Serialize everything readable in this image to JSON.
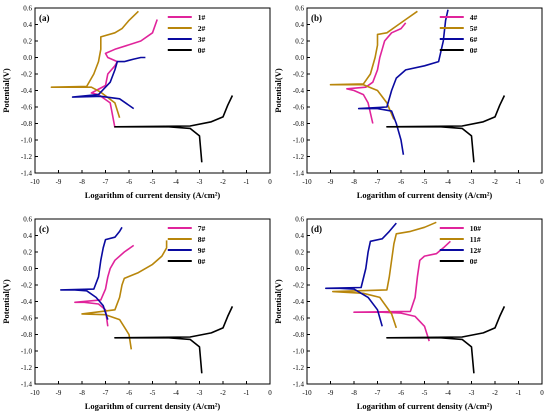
{
  "chart_data": [
    {
      "type": "line",
      "panel_label": "(a)",
      "xlabel": "Logarithm of current density (A/cm²)",
      "ylabel": "Potential(V)",
      "xlim": [
        -10,
        0
      ],
      "ylim": [
        -1.4,
        0.6
      ],
      "xticks": [
        "-10",
        "-9",
        "-8",
        "-7",
        "-6",
        "-5",
        "-4",
        "-3",
        "-2",
        "-1",
        "0"
      ],
      "yticks": [
        "-1.4",
        "-1.2",
        "-1.0",
        "-0.8",
        "-0.6",
        "-0.4",
        "-0.2",
        "0.0",
        "0.2",
        "0.4",
        "0.6"
      ],
      "legend_position": "top-right",
      "series": [
        {
          "name": "1#",
          "color": "#e0249b",
          "points": [
            [
              -6.6,
              -0.85
            ],
            [
              -6.8,
              -0.55
            ],
            [
              -7.3,
              -0.45
            ],
            [
              -7.6,
              -0.43
            ],
            [
              -7.0,
              -0.34
            ],
            [
              -6.9,
              -0.2
            ],
            [
              -6.6,
              -0.1
            ],
            [
              -6.5,
              -0.05
            ],
            [
              -6.9,
              0.0
            ],
            [
              -7.0,
              0.05
            ],
            [
              -6.6,
              0.1
            ],
            [
              -5.5,
              0.2
            ],
            [
              -5.0,
              0.3
            ],
            [
              -4.8,
              0.46
            ]
          ]
        },
        {
          "name": "2#",
          "color": "#b8860b",
          "points": [
            [
              -6.4,
              -0.73
            ],
            [
              -6.6,
              -0.55
            ],
            [
              -7.2,
              -0.42
            ],
            [
              -7.6,
              -0.36
            ],
            [
              -8.2,
              -0.36
            ],
            [
              -9.3,
              -0.36
            ],
            [
              -7.8,
              -0.35
            ],
            [
              -7.5,
              -0.2
            ],
            [
              -7.3,
              -0.05
            ],
            [
              -7.2,
              0.1
            ],
            [
              -7.2,
              0.25
            ],
            [
              -6.6,
              0.3
            ],
            [
              -6.3,
              0.35
            ],
            [
              -6.0,
              0.45
            ],
            [
              -5.6,
              0.56
            ]
          ]
        },
        {
          "name": "3#",
          "color": "#0a0aa0",
          "points": [
            [
              -5.8,
              -0.62
            ],
            [
              -6.4,
              -0.5
            ],
            [
              -7.2,
              -0.47
            ],
            [
              -8.4,
              -0.48
            ],
            [
              -7.3,
              -0.45
            ],
            [
              -6.8,
              -0.3
            ],
            [
              -6.6,
              -0.15
            ],
            [
              -6.5,
              -0.05
            ],
            [
              -6.2,
              -0.05
            ],
            [
              -5.8,
              -0.02
            ],
            [
              -5.5,
              0.0
            ],
            [
              -5.3,
              0.0
            ]
          ]
        },
        {
          "name": "0#",
          "color": "#000000",
          "points": [
            [
              -2.9,
              -1.27
            ],
            [
              -3.0,
              -0.95
            ],
            [
              -3.4,
              -0.86
            ],
            [
              -4.3,
              -0.84
            ],
            [
              -5.2,
              -0.84
            ],
            [
              -6.6,
              -0.84
            ],
            [
              -3.4,
              -0.83
            ],
            [
              -2.5,
              -0.78
            ],
            [
              -2.0,
              -0.72
            ],
            [
              -1.8,
              -0.58
            ],
            [
              -1.6,
              -0.46
            ]
          ]
        }
      ]
    },
    {
      "type": "line",
      "panel_label": "(b)",
      "xlabel": "Logarithm of current density (A/cm²)",
      "ylabel": "Potential(V)",
      "xlim": [
        -10,
        0
      ],
      "ylim": [
        -1.4,
        0.6
      ],
      "xticks": [
        "-10",
        "-9",
        "-8",
        "-7",
        "-6",
        "-5",
        "-4",
        "-3",
        "-2",
        "-1",
        "0"
      ],
      "yticks": [
        "-1.4",
        "-1.2",
        "-1.0",
        "-0.8",
        "-0.6",
        "-0.4",
        "-0.2",
        "0.0",
        "0.2",
        "0.4",
        "0.6"
      ],
      "legend_position": "top-right",
      "series": [
        {
          "name": "4#",
          "color": "#e0249b",
          "points": [
            [
              -7.2,
              -0.8
            ],
            [
              -7.4,
              -0.55
            ],
            [
              -7.6,
              -0.45
            ],
            [
              -8.0,
              -0.4
            ],
            [
              -8.3,
              -0.38
            ],
            [
              -7.5,
              -0.36
            ],
            [
              -7.2,
              -0.3
            ],
            [
              -7.0,
              -0.15
            ],
            [
              -6.9,
              0.0
            ],
            [
              -6.8,
              0.1
            ],
            [
              -6.7,
              0.2
            ],
            [
              -6.4,
              0.3
            ],
            [
              -6.0,
              0.35
            ],
            [
              -5.8,
              0.42
            ]
          ]
        },
        {
          "name": "5#",
          "color": "#b8860b",
          "points": [
            [
              -6.3,
              -0.75
            ],
            [
              -6.6,
              -0.55
            ],
            [
              -7.0,
              -0.4
            ],
            [
              -7.6,
              -0.33
            ],
            [
              -8.2,
              -0.33
            ],
            [
              -9.0,
              -0.33
            ],
            [
              -7.6,
              -0.32
            ],
            [
              -7.3,
              -0.2
            ],
            [
              -7.1,
              0.0
            ],
            [
              -7.0,
              0.15
            ],
            [
              -7.0,
              0.28
            ],
            [
              -6.6,
              0.3
            ],
            [
              -6.2,
              0.38
            ],
            [
              -5.8,
              0.46
            ],
            [
              -5.3,
              0.56
            ]
          ]
        },
        {
          "name": "6#",
          "color": "#0a0aa0",
          "points": [
            [
              -5.9,
              -1.18
            ],
            [
              -6.0,
              -1.0
            ],
            [
              -6.2,
              -0.8
            ],
            [
              -6.4,
              -0.65
            ],
            [
              -7.0,
              -0.62
            ],
            [
              -7.8,
              -0.62
            ],
            [
              -6.6,
              -0.6
            ],
            [
              -6.4,
              -0.4
            ],
            [
              -6.2,
              -0.25
            ],
            [
              -5.8,
              -0.15
            ],
            [
              -5.0,
              -0.1
            ],
            [
              -4.4,
              -0.05
            ],
            [
              -4.2,
              0.2
            ],
            [
              -4.1,
              0.45
            ],
            [
              -4.0,
              0.58
            ]
          ]
        },
        {
          "name": "0#",
          "color": "#000000",
          "points": [
            [
              -2.9,
              -1.27
            ],
            [
              -3.0,
              -0.95
            ],
            [
              -3.4,
              -0.86
            ],
            [
              -4.3,
              -0.84
            ],
            [
              -5.2,
              -0.84
            ],
            [
              -6.6,
              -0.84
            ],
            [
              -3.4,
              -0.83
            ],
            [
              -2.5,
              -0.78
            ],
            [
              -2.0,
              -0.72
            ],
            [
              -1.8,
              -0.58
            ],
            [
              -1.6,
              -0.46
            ]
          ]
        }
      ]
    },
    {
      "type": "line",
      "panel_label": "(c)",
      "xlabel": "Logarithm of current density (A/cm²)",
      "ylabel": "Potential(V)",
      "xlim": [
        -10,
        0
      ],
      "ylim": [
        -1.4,
        0.6
      ],
      "xticks": [
        "-10",
        "-9",
        "-8",
        "-7",
        "-6",
        "-5",
        "-4",
        "-3",
        "-2",
        "-1",
        "0"
      ],
      "yticks": [
        "-1.4",
        "-1.2",
        "-1.0",
        "-0.8",
        "-0.6",
        "-0.4",
        "-0.2",
        "0.0",
        "0.2",
        "0.4",
        "0.6"
      ],
      "legend_position": "top-right",
      "series": [
        {
          "name": "7#",
          "color": "#e0249b",
          "points": [
            [
              -6.9,
              -0.7
            ],
            [
              -7.0,
              -0.5
            ],
            [
              -7.3,
              -0.43
            ],
            [
              -7.9,
              -0.41
            ],
            [
              -8.3,
              -0.41
            ],
            [
              -7.2,
              -0.38
            ],
            [
              -7.0,
              -0.25
            ],
            [
              -6.9,
              -0.1
            ],
            [
              -6.8,
              0.0
            ],
            [
              -6.6,
              0.1
            ],
            [
              -6.2,
              0.2
            ],
            [
              -5.8,
              0.28
            ]
          ]
        },
        {
          "name": "8#",
          "color": "#b8860b",
          "points": [
            [
              -5.9,
              -0.98
            ],
            [
              -6.0,
              -0.8
            ],
            [
              -6.4,
              -0.62
            ],
            [
              -7.0,
              -0.56
            ],
            [
              -8.0,
              -0.55
            ],
            [
              -6.6,
              -0.5
            ],
            [
              -6.4,
              -0.35
            ],
            [
              -6.3,
              -0.2
            ],
            [
              -6.2,
              -0.12
            ],
            [
              -5.6,
              -0.05
            ],
            [
              -5.0,
              0.05
            ],
            [
              -4.6,
              0.15
            ],
            [
              -4.4,
              0.25
            ],
            [
              -4.4,
              0.34
            ]
          ]
        },
        {
          "name": "9#",
          "color": "#0a0aa0",
          "points": [
            [
              -6.9,
              -0.62
            ],
            [
              -7.1,
              -0.45
            ],
            [
              -7.4,
              -0.35
            ],
            [
              -7.8,
              -0.27
            ],
            [
              -8.3,
              -0.26
            ],
            [
              -8.9,
              -0.26
            ],
            [
              -7.5,
              -0.25
            ],
            [
              -7.3,
              -0.1
            ],
            [
              -7.2,
              0.1
            ],
            [
              -7.1,
              0.25
            ],
            [
              -7.0,
              0.35
            ],
            [
              -6.6,
              0.38
            ],
            [
              -6.4,
              0.45
            ],
            [
              -6.3,
              0.5
            ]
          ]
        },
        {
          "name": "0#",
          "color": "#000000",
          "points": [
            [
              -2.9,
              -1.27
            ],
            [
              -3.0,
              -0.95
            ],
            [
              -3.4,
              -0.86
            ],
            [
              -4.3,
              -0.84
            ],
            [
              -5.2,
              -0.84
            ],
            [
              -6.6,
              -0.84
            ],
            [
              -3.4,
              -0.83
            ],
            [
              -2.5,
              -0.78
            ],
            [
              -2.0,
              -0.72
            ],
            [
              -1.8,
              -0.58
            ],
            [
              -1.6,
              -0.46
            ]
          ]
        }
      ]
    },
    {
      "type": "line",
      "panel_label": "(d)",
      "xlabel": "Logarithm of current density (A/cm²)",
      "ylabel": "Potential(V)",
      "xlim": [
        -10,
        0
      ],
      "ylim": [
        -1.4,
        0.6
      ],
      "xticks": [
        "-10",
        "-9",
        "-8",
        "-7",
        "-6",
        "-5",
        "-4",
        "-3",
        "-2",
        "-1",
        "0"
      ],
      "yticks": [
        "-1.4",
        "-1.2",
        "-1.0",
        "-0.8",
        "-0.6",
        "-0.4",
        "-0.2",
        "0.0",
        "0.2",
        "0.4",
        "0.6"
      ],
      "legend_position": "top-right",
      "series": [
        {
          "name": "10#",
          "color": "#e0249b",
          "points": [
            [
              -4.8,
              -0.88
            ],
            [
              -5.0,
              -0.7
            ],
            [
              -5.4,
              -0.58
            ],
            [
              -6.0,
              -0.54
            ],
            [
              -6.8,
              -0.53
            ],
            [
              -8.0,
              -0.53
            ],
            [
              -5.6,
              -0.52
            ],
            [
              -5.4,
              -0.35
            ],
            [
              -5.3,
              -0.1
            ],
            [
              -5.2,
              0.1
            ],
            [
              -5.0,
              0.15
            ],
            [
              -4.5,
              0.18
            ],
            [
              -4.2,
              0.25
            ],
            [
              -3.9,
              0.33
            ]
          ]
        },
        {
          "name": "11#",
          "color": "#b8860b",
          "points": [
            [
              -6.2,
              -0.72
            ],
            [
              -6.4,
              -0.55
            ],
            [
              -6.9,
              -0.35
            ],
            [
              -7.6,
              -0.3
            ],
            [
              -8.9,
              -0.28
            ],
            [
              -6.6,
              -0.26
            ],
            [
              -6.5,
              -0.1
            ],
            [
              -6.4,
              0.1
            ],
            [
              -6.3,
              0.3
            ],
            [
              -6.2,
              0.42
            ],
            [
              -5.6,
              0.45
            ],
            [
              -5.0,
              0.5
            ],
            [
              -4.5,
              0.56
            ]
          ]
        },
        {
          "name": "12#",
          "color": "#0a0aa0",
          "points": [
            [
              -6.8,
              -0.7
            ],
            [
              -7.0,
              -0.5
            ],
            [
              -7.4,
              -0.35
            ],
            [
              -8.0,
              -0.25
            ],
            [
              -8.6,
              -0.24
            ],
            [
              -9.2,
              -0.24
            ],
            [
              -7.7,
              -0.23
            ],
            [
              -7.5,
              0.0
            ],
            [
              -7.4,
              0.2
            ],
            [
              -7.3,
              0.33
            ],
            [
              -6.8,
              0.36
            ],
            [
              -6.5,
              0.45
            ],
            [
              -6.2,
              0.55
            ]
          ]
        },
        {
          "name": "0#",
          "color": "#000000",
          "points": [
            [
              -2.9,
              -1.27
            ],
            [
              -3.0,
              -0.95
            ],
            [
              -3.4,
              -0.86
            ],
            [
              -4.3,
              -0.84
            ],
            [
              -5.2,
              -0.84
            ],
            [
              -6.6,
              -0.84
            ],
            [
              -3.4,
              -0.83
            ],
            [
              -2.5,
              -0.78
            ],
            [
              -2.0,
              -0.72
            ],
            [
              -1.8,
              -0.58
            ],
            [
              -1.6,
              -0.46
            ]
          ]
        }
      ]
    }
  ]
}
